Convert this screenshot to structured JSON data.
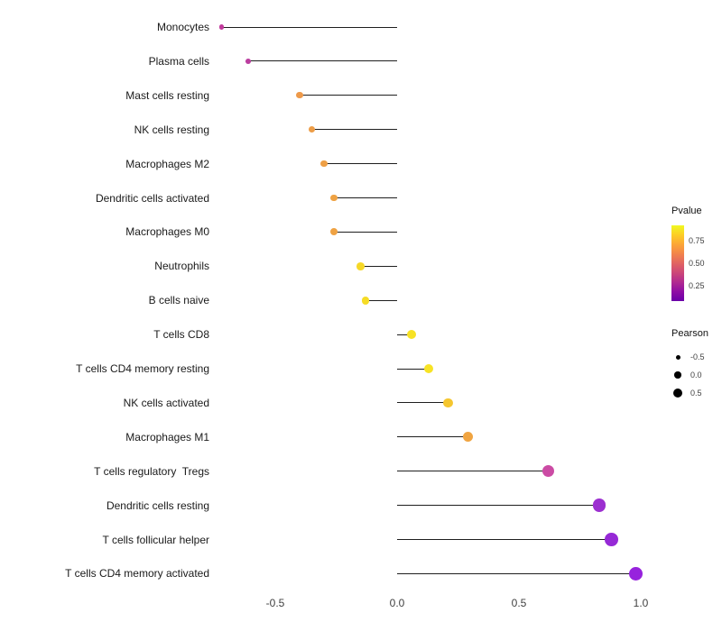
{
  "chart_data": {
    "type": "scatter",
    "subtype": "lollipop",
    "title": "",
    "xlabel": "",
    "ylabel": "",
    "xlim": [
      -0.8,
      1.05
    ],
    "grid": false,
    "legend_position": "right",
    "encoding": {
      "x": "Pearson correlation",
      "dot_color": "Pvalue (plasma colormap: yellow = high, purple = low)",
      "dot_size": "Pearson"
    },
    "x_ticks": [
      -0.5,
      0.0,
      0.5,
      1.0
    ],
    "x_tick_labels": [
      "-0.5",
      "0.0",
      "0.5",
      "1.0"
    ],
    "points": [
      {
        "label": "Monocytes",
        "pearson": -0.72,
        "color": "#c13a9c"
      },
      {
        "label": "Plasma cells",
        "pearson": -0.61,
        "color": "#bb3d9f"
      },
      {
        "label": "Mast cells resting",
        "pearson": -0.4,
        "color": "#ee9a4a"
      },
      {
        "label": "NK cells resting",
        "pearson": -0.35,
        "color": "#ed9d47"
      },
      {
        "label": "Macrophages M2",
        "pearson": -0.3,
        "color": "#ee9f45"
      },
      {
        "label": "Dendritic cells activated",
        "pearson": -0.26,
        "color": "#efa243"
      },
      {
        "label": "Macrophages M0",
        "pearson": -0.26,
        "color": "#efa243"
      },
      {
        "label": "Neutrophils",
        "pearson": -0.15,
        "color": "#f6d827"
      },
      {
        "label": "B cells naive",
        "pearson": -0.13,
        "color": "#f6dc26"
      },
      {
        "label": "T cells CD8",
        "pearson": 0.06,
        "color": "#f7e225"
      },
      {
        "label": "T cells CD4 memory resting",
        "pearson": 0.13,
        "color": "#f7e325"
      },
      {
        "label": "NK cells activated",
        "pearson": 0.21,
        "color": "#f5c62f"
      },
      {
        "label": "Macrophages M1",
        "pearson": 0.29,
        "color": "#f0a441"
      },
      {
        "label": "T cells regulatory  Tregs",
        "pearson": 0.62,
        "color": "#cb4ba4"
      },
      {
        "label": "Dendritic cells resting",
        "pearson": 0.83,
        "color": "#9c2fd0"
      },
      {
        "label": "T cells follicular helper",
        "pearson": 0.88,
        "color": "#9629d6"
      },
      {
        "label": "T cells CD4 memory activated",
        "pearson": 0.98,
        "color": "#9722dd"
      }
    ]
  },
  "legend": {
    "pvalue": {
      "title": "Pvalue",
      "gradient": [
        "#f0f921",
        "#fcce25",
        "#fca636",
        "#f2844b",
        "#e16462",
        "#cc4778",
        "#b12a90",
        "#8f0da4",
        "#6a00a8"
      ],
      "ticks": [
        {
          "label": "0.75",
          "pos": 0.2
        },
        {
          "label": "0.50",
          "pos": 0.5
        },
        {
          "label": "0.25",
          "pos": 0.8
        }
      ]
    },
    "pearson": {
      "title": "Pearson",
      "items": [
        {
          "label": "-0.5",
          "size": 5
        },
        {
          "label": "0.0",
          "size": 7.5
        },
        {
          "label": "0.5",
          "size": 10
        }
      ]
    }
  }
}
